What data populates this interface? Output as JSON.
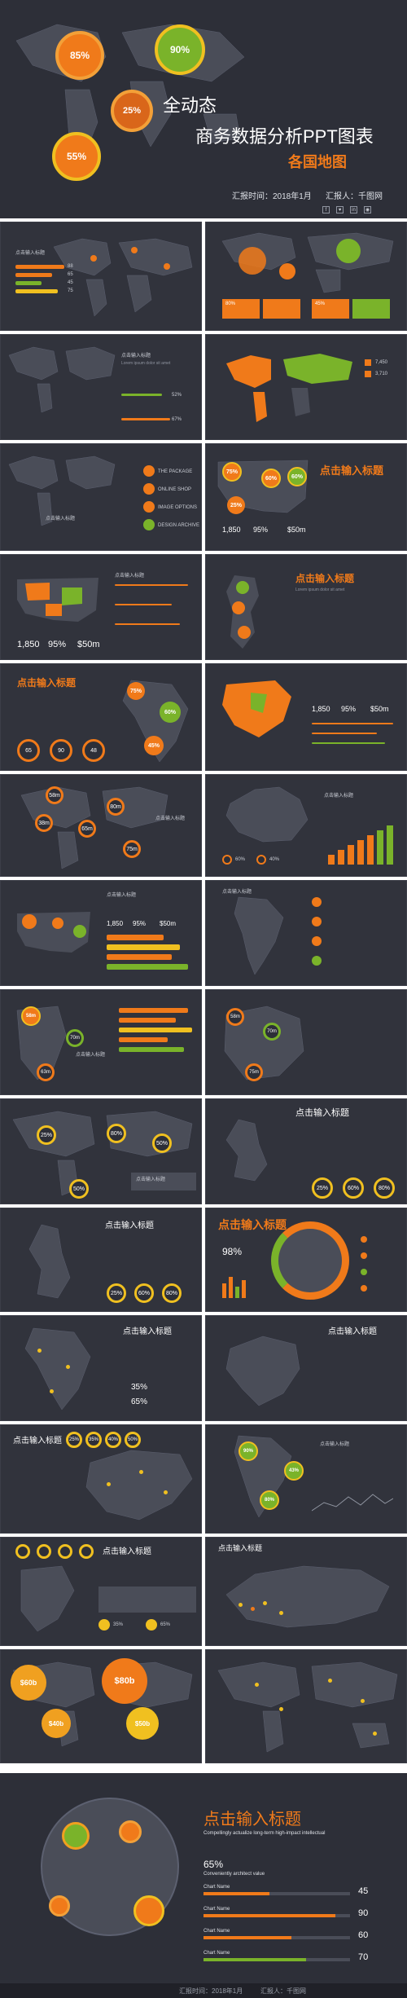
{
  "hero": {
    "title1": "全动态",
    "title2": "商务数据分析PPT图表",
    "title3": "各国地图",
    "date": "汇报时间：2018年1月",
    "reporter": "汇报人：千图网",
    "bubbles": [
      "85%",
      "90%",
      "25%",
      "55%"
    ],
    "social": [
      "f",
      "♥",
      "in",
      "◉"
    ]
  },
  "slides": {
    "heading_cn": "点击输入标题",
    "heading_small": "点击输入标题",
    "sub": "Lorem ipsum dolor sit amet",
    "values_s1": [
      "88",
      "65",
      "45",
      "75"
    ],
    "values_s2": [
      "80%",
      "45%"
    ],
    "values_s3": [
      "52%",
      "67%"
    ],
    "values_s4": [
      "7,450",
      "3,710"
    ],
    "menu_s5": [
      "THE PACKAGE",
      "ONLINE SHOP",
      "IMAGE OPTIONS",
      "DESIGN ARCHIVE"
    ],
    "bubbles_s6": [
      "75%",
      "60%",
      "60%",
      "25%"
    ],
    "stats": [
      "1,850",
      "95%",
      "$50m"
    ],
    "rings_s9": [
      "65",
      "90",
      "48"
    ],
    "bubbles_s10": [
      "75%",
      "60%",
      "45%"
    ],
    "bubbles_s12": [
      "58m",
      "80m",
      "38m",
      "65m",
      "75m"
    ],
    "percent_pair": [
      "60%",
      "40%"
    ],
    "bubbles_s16": [
      "58m",
      "70m",
      "63m"
    ],
    "bubbles_s17": [
      "58m",
      "70m",
      "75m"
    ],
    "rings_s18": [
      "25%",
      "80%",
      "50%",
      "50%"
    ],
    "rings_three": [
      "25%",
      "60%",
      "80%"
    ],
    "percent_98": "98%",
    "percent_35": "35%",
    "percent_65": "65%",
    "rings_s24": [
      "25%",
      "35%",
      "40%",
      "50%"
    ],
    "bubbles_s26": [
      "90%",
      "43%",
      "80%"
    ],
    "values_s28": [
      "35%",
      "65%"
    ],
    "bubbles_s29": [
      "$60b",
      "$80b",
      "$40b",
      "$50b"
    ]
  },
  "final": {
    "title": "点击输入标题",
    "sub": "Compellingly actualize long-term high-impact intellectual",
    "percent": "65%",
    "percent_sub": "Conveniently architect value",
    "bars": [
      {
        "name": "Chart Name",
        "value": "45",
        "fill": 0.45,
        "color": "#f07a1a"
      },
      {
        "name": "Chart Name",
        "value": "90",
        "fill": 0.9,
        "color": "#f07a1a"
      },
      {
        "name": "Chart Name",
        "value": "60",
        "fill": 0.6,
        "color": "#f07a1a"
      },
      {
        "name": "Chart Name",
        "value": "70",
        "fill": 0.7,
        "color": "#7ab32a"
      }
    ]
  },
  "footer": {
    "date": "汇报时间：2018年1月",
    "reporter": "汇报人：千图网"
  },
  "colors": {
    "orange": "#f07a1a",
    "green": "#7ab32a",
    "yellow": "#f0c020",
    "bg": "#2d2f38"
  }
}
